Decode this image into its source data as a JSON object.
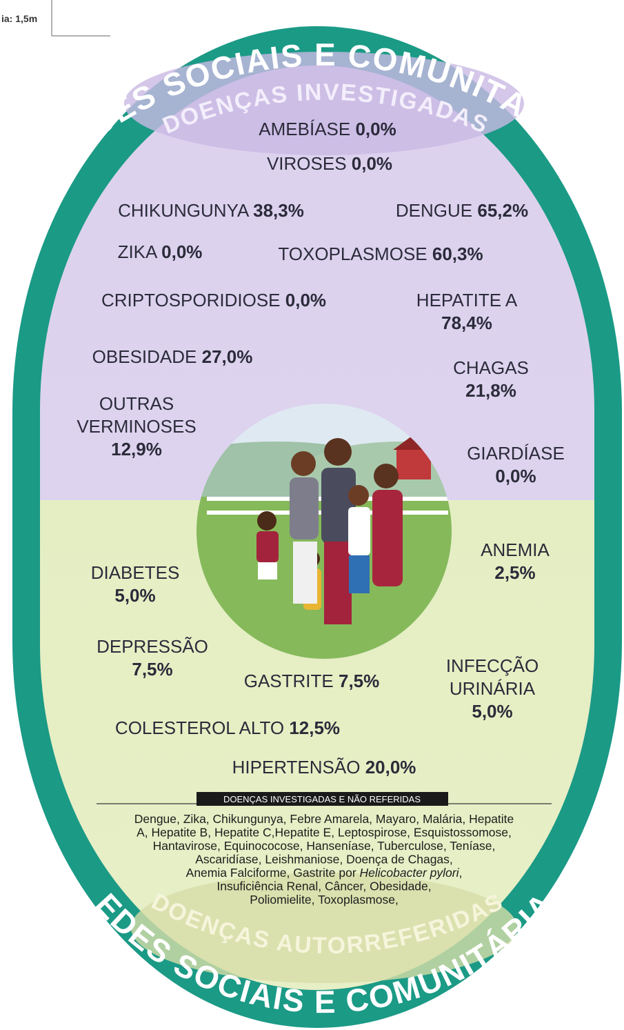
{
  "corner_note": "ia: 1,5m",
  "arcs": {
    "top_outer": "REDES SOCIAIS E COMUNITÁRIAS",
    "top_inner": "DOENÇAS INVESTIGADAS",
    "bottom_inner": "DOENÇAS AUTORREFERIDAS",
    "bottom_outer": "REDES SOCIAIS E COMUNITÁRIAS"
  },
  "investigated": [
    {
      "name": [
        "AMEBÍASE"
      ],
      "value": "0,0%"
    },
    {
      "name": [
        "VIROSES"
      ],
      "value": "0,0%"
    },
    {
      "name": [
        "CHIKUNGUNYA"
      ],
      "value": "38,3%"
    },
    {
      "name": [
        "DENGUE"
      ],
      "value": "65,2%"
    },
    {
      "name": [
        "ZIKA"
      ],
      "value": "0,0%"
    },
    {
      "name": [
        "TOXOPLASMOSE"
      ],
      "value": "60,3%"
    },
    {
      "name": [
        "CRIPTOSPORIDIOSE"
      ],
      "value": "0,0%"
    },
    {
      "name": [
        "HEPATITE A"
      ],
      "value": "78,4%"
    },
    {
      "name": [
        "OBESIDADE"
      ],
      "value": "27,0%"
    },
    {
      "name": [
        "CHAGAS"
      ],
      "value": "21,8%"
    },
    {
      "name": [
        "OUTRAS",
        "VERMINOSES"
      ],
      "value": "12,9%"
    },
    {
      "name": [
        "GIARDÍASE"
      ],
      "value": "0,0%"
    }
  ],
  "self_reported": [
    {
      "name": [
        "ANEMIA"
      ],
      "value": "2,5%"
    },
    {
      "name": [
        "DIABETES"
      ],
      "value": "5,0%"
    },
    {
      "name": [
        "DEPRESSÃO"
      ],
      "value": "7,5%"
    },
    {
      "name": [
        "GASTRITE"
      ],
      "value": "7,5%"
    },
    {
      "name": [
        "INFECÇÃO",
        "URINÁRIA"
      ],
      "value": "5,0%"
    },
    {
      "name": [
        "COLESTEROL ALTO"
      ],
      "value": "12,5%"
    },
    {
      "name": [
        "HIPERTENSÃO"
      ],
      "value": "20,0%"
    }
  ],
  "footer": {
    "heading": "DOENÇAS INVESTIGADAS E NÃO REFERIDAS",
    "lines": [
      [
        "Dengue, Zika, Chikungunya, Febre Amarela, Mayaro, Malária, Hepatite"
      ],
      [
        "A, Hepatite B, Hepatite C,Hepatite E, Leptospirose, Esquistossomose,"
      ],
      [
        "Hantavirose, Equinococose, Hanseníase, Tuberculose, Teníase,"
      ],
      [
        "Ascaridíase, Leishmaniose, Doença de Chagas,"
      ],
      [
        "Anemia Falciforme, Gastrite por ",
        "Helicobacter pylori",
        ","
      ],
      [
        "Insuficiência Renal, Câncer, Obesidade,"
      ],
      [
        "Poliomielite, Toxoplasmose,"
      ]
    ]
  }
}
